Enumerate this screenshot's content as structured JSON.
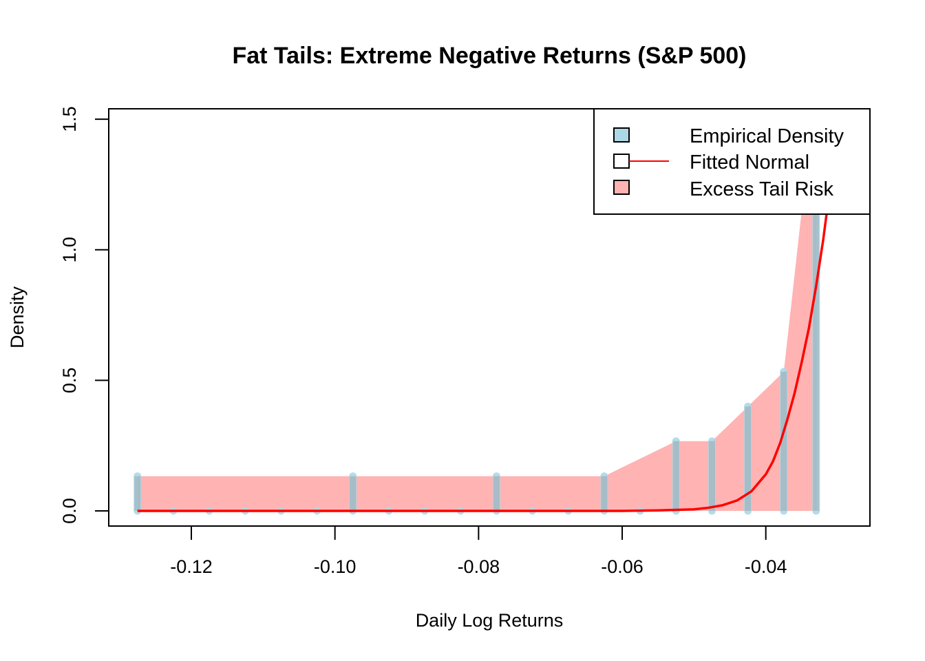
{
  "chart_data": {
    "type": "area",
    "title": "Fat Tails: Extreme Negative Returns (S&P 500)",
    "xlabel": "Daily Log Returns",
    "ylabel": "Density",
    "xlim": [
      -0.1315,
      -0.0255
    ],
    "ylim": [
      -0.058,
      1.54
    ],
    "x_ticks": [
      -0.12,
      -0.1,
      -0.08,
      -0.06,
      -0.04
    ],
    "x_tick_labels": [
      "-0.12",
      "-0.10",
      "-0.08",
      "-0.06",
      "-0.04"
    ],
    "y_ticks": [
      0.0,
      0.5,
      1.0,
      1.5
    ],
    "y_tick_labels": [
      "0.0",
      "0.5",
      "1.0",
      "1.5"
    ],
    "grid": false,
    "legend_position": "top-right",
    "legend": [
      {
        "label": "Empirical Density",
        "swatch": "#ADD8E6",
        "line": false
      },
      {
        "label": "Fitted Normal",
        "swatch": "#FFFFFF",
        "line": true,
        "line_color": "#FF0000"
      },
      {
        "label": "Excess Tail Risk",
        "swatch": "#FFB3B3",
        "line": false
      }
    ],
    "series": [
      {
        "name": "Empirical Density",
        "kind": "histogram-spikes",
        "color": "#ADD8E6",
        "x": [
          -0.1275,
          -0.1225,
          -0.1175,
          -0.1125,
          -0.1075,
          -0.1025,
          -0.0975,
          -0.0925,
          -0.0875,
          -0.0825,
          -0.0775,
          -0.0725,
          -0.0675,
          -0.0625,
          -0.0575,
          -0.0525,
          -0.0475,
          -0.0425,
          -0.0375,
          -0.033
        ],
        "y": [
          0.133,
          0.0,
          0.0,
          0.0,
          0.0,
          0.0,
          0.133,
          0.0,
          0.0,
          0.0,
          0.133,
          0.0,
          0.0,
          0.133,
          0.0,
          0.267,
          0.267,
          0.4,
          0.533,
          1.15
        ]
      },
      {
        "name": "Excess Tail Risk",
        "kind": "area",
        "color": "#FFB3B3",
        "x": [
          -0.1275,
          -0.0625,
          -0.0525,
          -0.0475,
          -0.0425,
          -0.0375,
          -0.035,
          -0.033,
          -0.033
        ],
        "y": [
          0.133,
          0.133,
          0.267,
          0.267,
          0.4,
          0.533,
          1.15,
          1.15,
          0.0
        ]
      },
      {
        "name": "Fitted Normal",
        "kind": "line",
        "color": "#FF0000",
        "x": [
          -0.1275,
          -0.06,
          -0.055,
          -0.05,
          -0.048,
          -0.046,
          -0.044,
          -0.042,
          -0.04,
          -0.039,
          -0.038,
          -0.037,
          -0.036,
          -0.035,
          -0.034,
          -0.033,
          -0.032,
          -0.031,
          -0.0305
        ],
        "y": [
          0.0,
          0.0,
          0.002,
          0.006,
          0.012,
          0.022,
          0.04,
          0.075,
          0.14,
          0.19,
          0.26,
          0.35,
          0.45,
          0.57,
          0.7,
          0.86,
          1.04,
          1.25,
          1.38
        ]
      }
    ]
  }
}
